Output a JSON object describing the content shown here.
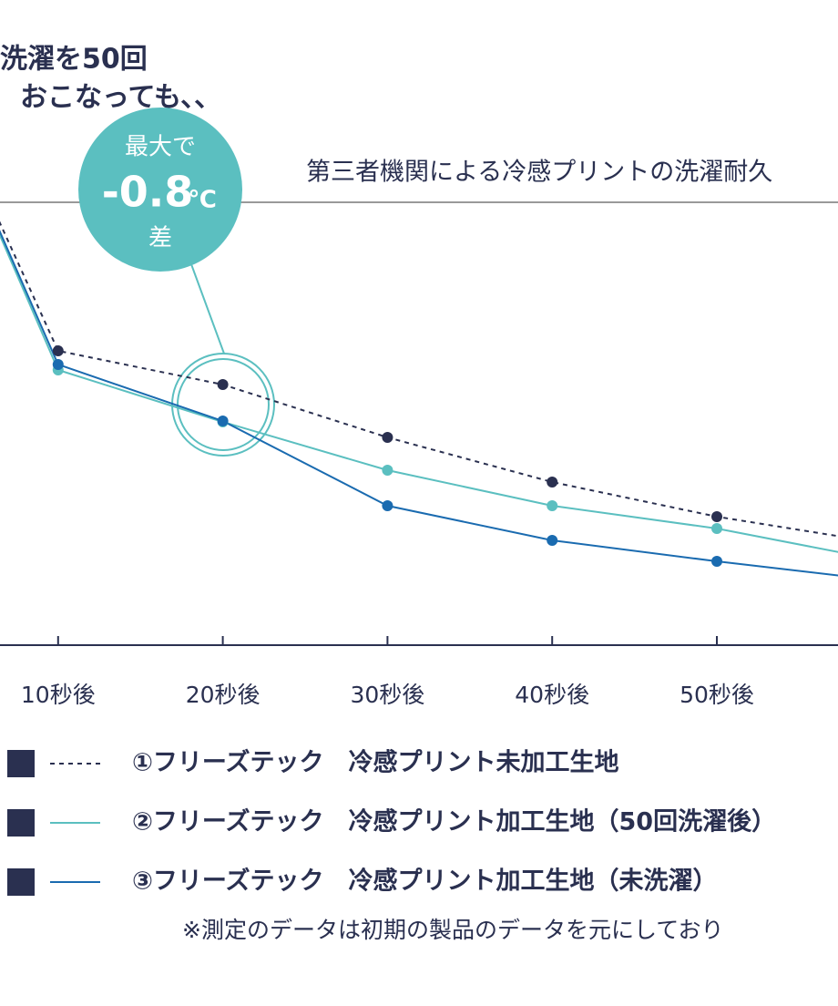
{
  "chart_data": {
    "type": "line",
    "title": "第三者機関による冷感プリントの洗濯耐久",
    "annotation": [
      "洗濯を50回",
      "おこなっても、、"
    ],
    "callout": {
      "top": "最大で",
      "value": "-0.8",
      "unit": "℃",
      "bottom": "差"
    },
    "categories": [
      null,
      "10秒後",
      "20秒後",
      "30秒後",
      "40秒後",
      "50秒後",
      null
    ],
    "series": [
      {
        "name": "①フリーズテック　冷感プリント未加工生地",
        "color": "#2a3050",
        "dash": true,
        "values": [
          144,
          64.6,
          57.2,
          45.6,
          35.8,
          28.2,
          22.4
        ]
      },
      {
        "name": "②フリーズテック　冷感プリント加工生地（50回洗濯後）",
        "color": "#5bbfc0",
        "dash": false,
        "values": [
          144,
          60.4,
          49,
          38.4,
          30.6,
          25.6,
          18.6
        ]
      },
      {
        "name": "③フリーズテック　冷感プリント加工生地（未洗濯）",
        "color": "#1a6bb0",
        "dash": false,
        "values": [
          144,
          61.6,
          49.2,
          30.6,
          23,
          18.4,
          14.2
        ]
      }
    ],
    "ylim": [
      0,
      100
    ],
    "note": "※測定のデータは初期の製品のデータを元にしており"
  }
}
